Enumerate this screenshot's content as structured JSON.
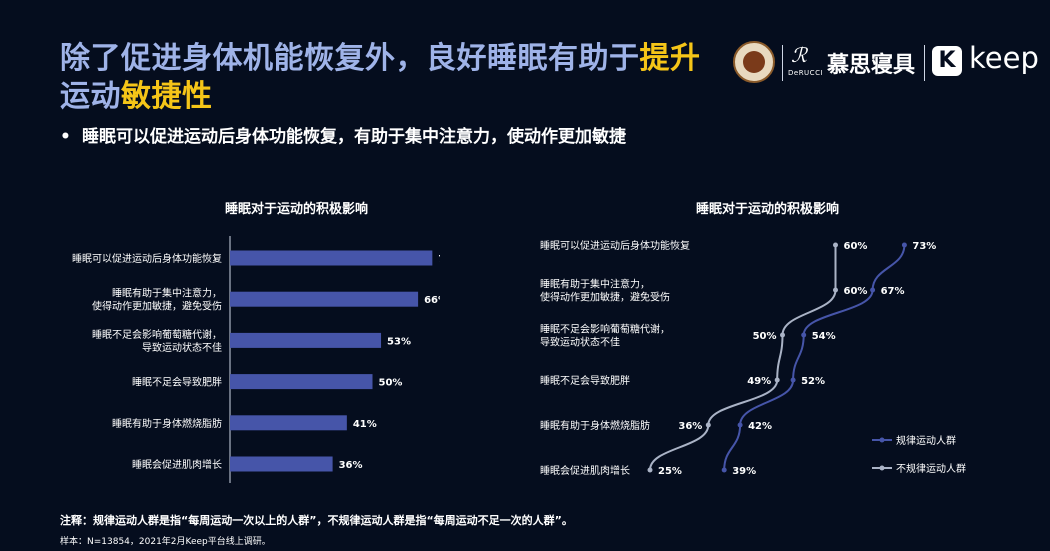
{
  "header": {
    "title_part1": "除了促进身体机能恢复外，良好睡眠有助于",
    "title_highlight1": "提升",
    "title_part2": "运动",
    "title_highlight2": "敏捷性",
    "bullet": "睡眠可以促进运动后身体功能恢复，有助于集中注意力，使动作更加敏捷"
  },
  "logos": {
    "derucci_mark": "ℛ",
    "derucci_sub": "DeRUCCI",
    "derucci_cn": "慕思寝具",
    "keep_icon": "K",
    "keep_text": "keep"
  },
  "colors": {
    "accent": "#f5c518",
    "title": "#9fb3e8",
    "bar": "#4655a9",
    "regular": "#4655a9",
    "irregular": "#aab3c6"
  },
  "chart_data": [
    {
      "type": "bar",
      "orientation": "horizontal",
      "title": "睡眠对于运动的积极影响",
      "categories": [
        [
          "睡眠可以促进运动后身体功能恢复"
        ],
        [
          "睡眠有助于集中注意力，",
          "使得动作更加敏捷，避免受伤"
        ],
        [
          "睡眠不足会影响葡萄糖代谢，",
          "导致运动状态不佳"
        ],
        [
          "睡眠不足会导致肥胖"
        ],
        [
          "睡眠有助于身体燃烧脂肪"
        ],
        [
          "睡眠会促进肌肉增长"
        ]
      ],
      "values": [
        71,
        66,
        53,
        50,
        41,
        36
      ],
      "value_labels": [
        "71%",
        "66%",
        "53%",
        "50%",
        "41%",
        "36%"
      ]
    },
    {
      "type": "line",
      "title": "睡眠对于运动的积极影响",
      "categories": [
        [
          "睡眠可以促进运动后身体功能恢复"
        ],
        [
          "睡眠有助于集中注意力，",
          "使得动作更加敏捷，避免受伤"
        ],
        [
          "睡眠不足会影响葡萄糖代谢，",
          "导致运动状态不佳"
        ],
        [
          "睡眠不足会导致肥胖"
        ],
        [
          "睡眠有助于身体燃烧脂肪"
        ],
        [
          "睡眠会促进肌肉增长"
        ]
      ],
      "legend_position": "bottom-right",
      "series": [
        {
          "name": "规律运动人群",
          "values": [
            73,
            67,
            54,
            52,
            42,
            39
          ],
          "labels": [
            "73%",
            "67%",
            "54%",
            "52%",
            "42%",
            "39%"
          ]
        },
        {
          "name": "不规律运动人群",
          "values": [
            60,
            60,
            50,
            49,
            36,
            25
          ],
          "labels": [
            "60%",
            "60%",
            "50%",
            "49%",
            "36%",
            "25%"
          ]
        }
      ]
    }
  ],
  "footer": {
    "note": "注释：规律运动人群是指“每周运动一次以上的人群”，不规律运动人群是指“每周运动不足一次的人群”。",
    "sample": "样本：N=13854，2021年2月Keep平台线上调研。"
  }
}
